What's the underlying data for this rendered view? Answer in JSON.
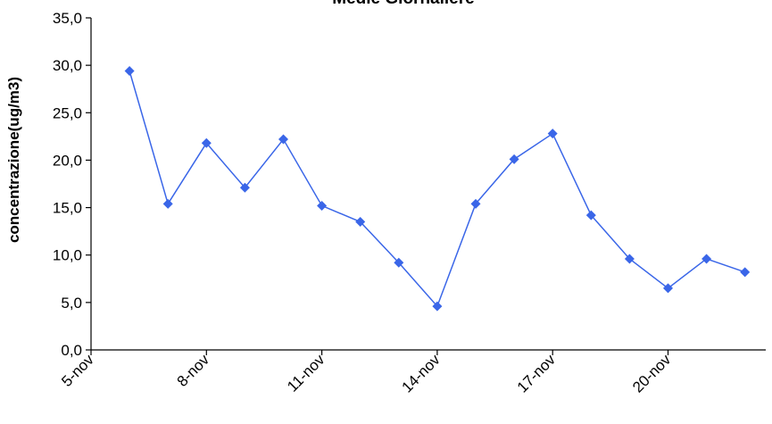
{
  "chart_data": {
    "type": "line",
    "title": "Medie Giornaliere",
    "xlabel": "",
    "ylabel": "concentrazione(ug/m3)",
    "ylim": [
      0,
      35
    ],
    "yticks": [
      "0,0",
      "5,0",
      "10,0",
      "15,0",
      "20,0",
      "25,0",
      "30,0",
      "35,0"
    ],
    "xticks": [
      "5-nov",
      "8-nov",
      "11-nov",
      "14-nov",
      "17-nov",
      "20-nov"
    ],
    "x": [
      "6-nov",
      "7-nov",
      "8-nov",
      "9-nov",
      "10-nov",
      "11-nov",
      "12-nov",
      "13-nov",
      "14-nov",
      "15-nov",
      "16-nov",
      "17-nov",
      "18-nov",
      "19-nov",
      "20-nov",
      "21-nov",
      "22-nov"
    ],
    "series": [
      {
        "values": [
          29.4,
          15.4,
          21.8,
          17.1,
          22.2,
          15.2,
          13.5,
          9.2,
          4.6,
          15.4,
          20.1,
          22.8,
          14.2,
          9.6,
          6.5,
          9.6,
          8.2
        ]
      }
    ],
    "grid": false,
    "legend": "none",
    "colors": {
      "series": "#3A66E8",
      "axis": "#000000"
    }
  }
}
